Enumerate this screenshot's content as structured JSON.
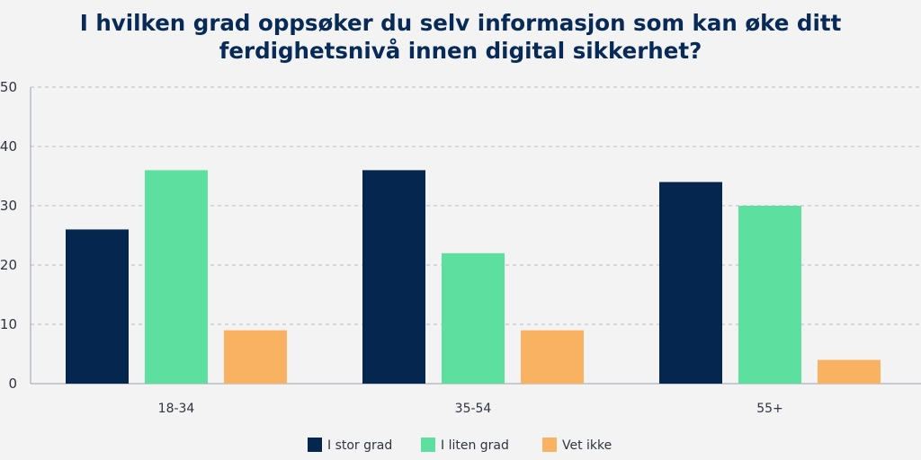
{
  "title_line1": "I hvilken grad oppsøker du selv informasjon som kan øke ditt",
  "title_line2": "ferdighetsnivå innen digital sikkerhet?",
  "chart_data": {
    "type": "bar",
    "title": "I hvilken grad oppsøker du selv informasjon som kan øke ditt ferdighetsnivå innen digital sikkerhet?",
    "categories": [
      "18-34",
      "35-54",
      "55+"
    ],
    "series": [
      {
        "name": "I stor grad",
        "values": [
          26,
          36,
          34
        ],
        "color": "#05264f"
      },
      {
        "name": "I liten grad",
        "values": [
          36,
          22,
          30
        ],
        "color": "#5ddfa0"
      },
      {
        "name": "Vet ikke",
        "values": [
          9,
          9,
          4
        ],
        "color": "#f9b262"
      }
    ],
    "ylim": [
      0,
      50
    ],
    "yticks": [
      0,
      10,
      20,
      30,
      40,
      50
    ],
    "grid": true,
    "legend": "bottom"
  }
}
